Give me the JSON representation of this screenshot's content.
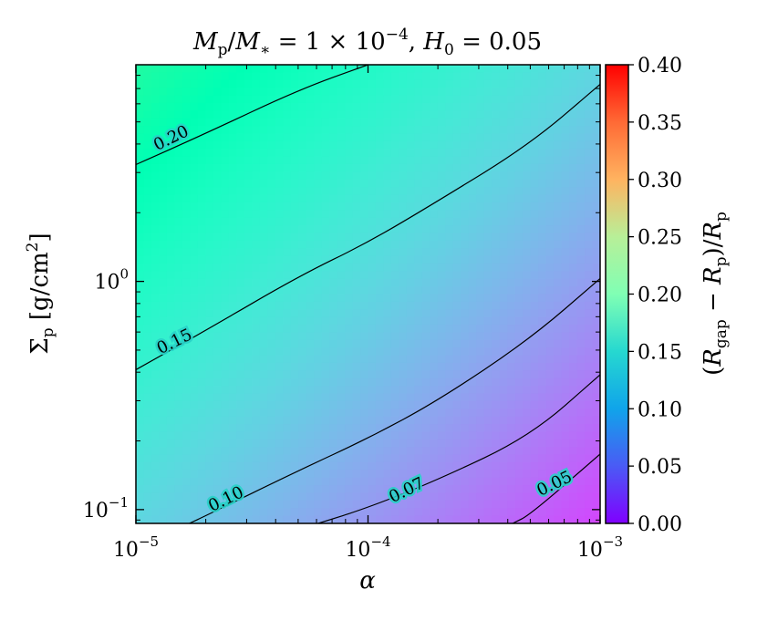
{
  "chart_data": {
    "type": "heatmap",
    "title": "Mp/M* = 1 × 10^-4, H0 = 0.05",
    "xlabel": "α",
    "ylabel": "Σp [g/cm^2]",
    "x_scale": "log",
    "y_scale": "log",
    "xlim": [
      1e-05,
      0.001
    ],
    "ylim": [
      0.087,
      8.9
    ],
    "x_ticks": [
      {
        "value": 1e-05,
        "base": "10",
        "exp": "−5"
      },
      {
        "value": 0.0001,
        "base": "10",
        "exp": "−4"
      },
      {
        "value": 0.001,
        "base": "10",
        "exp": "−3"
      }
    ],
    "y_ticks": [
      {
        "value": 0.1,
        "base": "10",
        "exp": "−1"
      },
      {
        "value": 1,
        "base": "10",
        "exp": "0"
      }
    ],
    "colorbar": {
      "label": "(Rgap − Rp)/Rp",
      "colormap": "rainbow",
      "range": [
        0.0,
        0.4
      ],
      "ticks": [
        "0.00",
        "0.05",
        "0.10",
        "0.15",
        "0.20",
        "0.25",
        "0.30",
        "0.35",
        "0.40"
      ]
    },
    "z_model": {
      "at_low_alpha_high_sigma": 0.225,
      "at_high_alpha_low_sigma": 0.035
    },
    "contours": [
      {
        "level": 0.2,
        "label": "0.20",
        "points": [
          [
            1e-05,
            3.25
          ],
          [
            2e-05,
            4.45
          ],
          [
            5e-05,
            6.9
          ],
          [
            0.0001,
            8.9
          ]
        ]
      },
      {
        "level": 0.15,
        "label": "0.15",
        "points": [
          [
            1e-05,
            0.41
          ],
          [
            2e-05,
            0.61
          ],
          [
            5e-05,
            1.05
          ],
          [
            0.0001,
            1.48
          ],
          [
            0.0002,
            2.25
          ],
          [
            0.0005,
            4.0
          ],
          [
            0.001,
            7.3
          ]
        ]
      },
      {
        "level": 0.1,
        "label": "0.10",
        "points": [
          [
            1.7e-05,
            0.087
          ],
          [
            2e-05,
            0.094
          ],
          [
            5e-05,
            0.148
          ],
          [
            0.0001,
            0.205
          ],
          [
            0.0002,
            0.3
          ],
          [
            0.0005,
            0.56
          ],
          [
            0.001,
            1.03
          ]
        ]
      },
      {
        "level": 0.07,
        "label": "0.07",
        "points": [
          [
            6.1e-05,
            0.087
          ],
          [
            0.0001,
            0.102
          ],
          [
            0.0002,
            0.135
          ],
          [
            0.0005,
            0.21
          ],
          [
            0.001,
            0.39
          ]
        ]
      },
      {
        "level": 0.05,
        "label": "0.05",
        "points": [
          [
            0.00042,
            0.087
          ],
          [
            0.0005,
            0.095
          ],
          [
            0.001,
            0.175
          ]
        ]
      }
    ]
  }
}
